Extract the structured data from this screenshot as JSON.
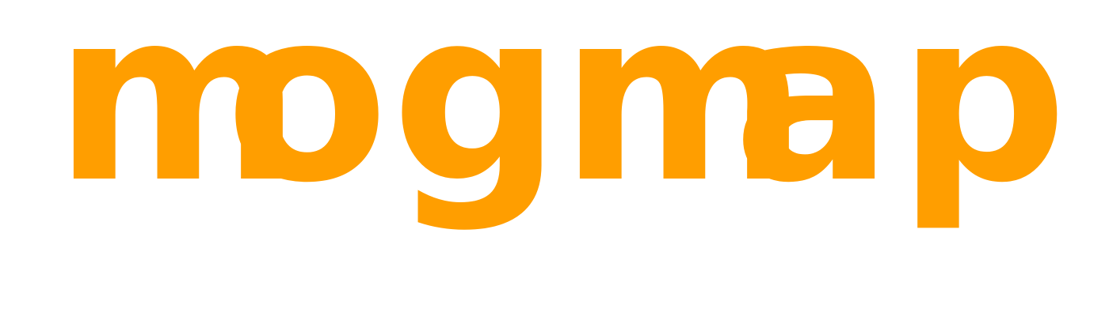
{
  "logo": {
    "text": "mogmap",
    "letters": [
      "m",
      "o",
      "g",
      "m",
      "a",
      "p"
    ],
    "color": "#ff9e00"
  },
  "background_color": "#ffffff"
}
